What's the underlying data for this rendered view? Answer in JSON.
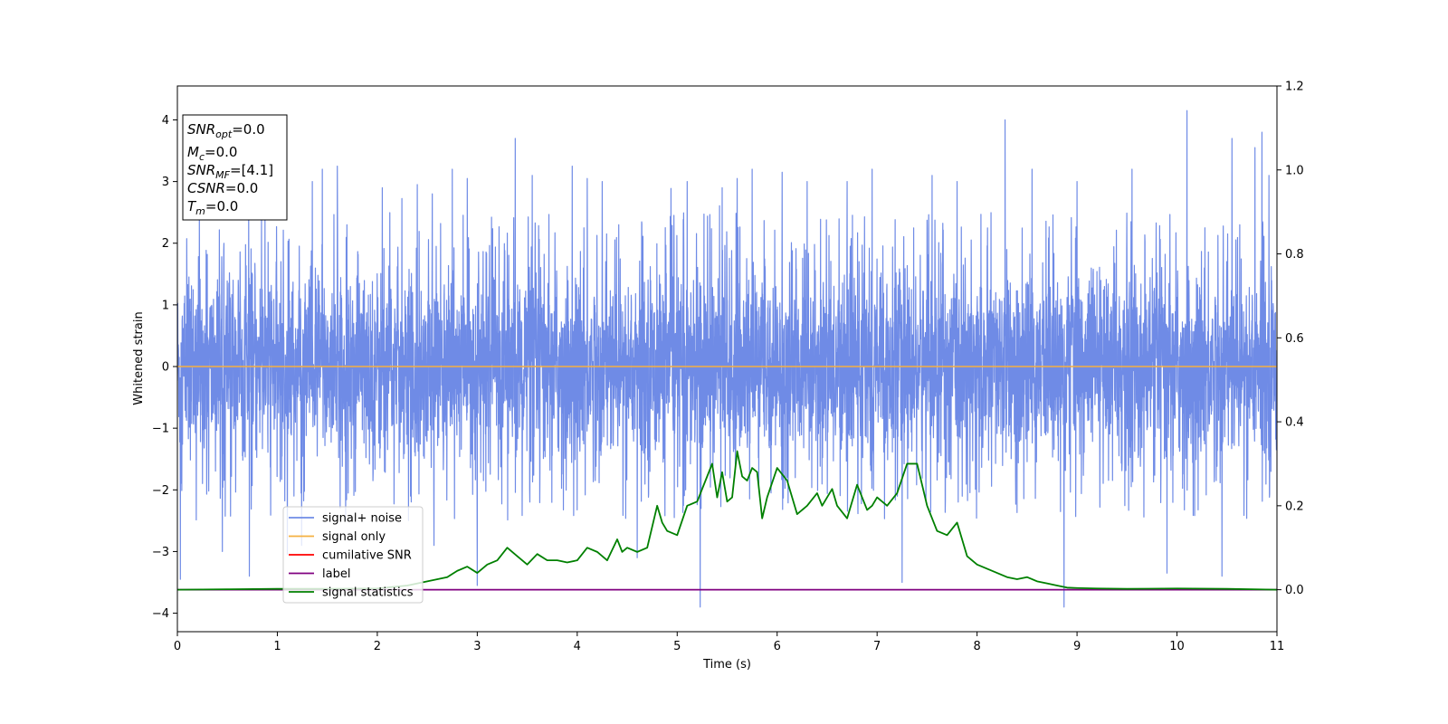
{
  "chart_data": {
    "type": "line",
    "xlabel": "Time (s)",
    "ylabel": "Whitened strain",
    "xlim": [
      0,
      11
    ],
    "ylim": [
      -4.3,
      4.55
    ],
    "y2lim": [
      -0.1,
      1.2
    ],
    "xticks": [
      "0",
      "1",
      "2",
      "3",
      "4",
      "5",
      "6",
      "7",
      "8",
      "9",
      "10",
      "11"
    ],
    "yticks": [
      "−4",
      "−3",
      "−2",
      "−1",
      "0",
      "1",
      "2",
      "3",
      "4"
    ],
    "y2ticks": [
      "0.0",
      "0.2",
      "0.4",
      "0.6",
      "0.8",
      "1.0",
      "1.2"
    ],
    "grid": false,
    "legend_position": "lower-left",
    "colors": {
      "signal_noise": "#6f8be6",
      "signal_only": "#f5b041",
      "cumulative_snr": "#ff0000",
      "label": "#800080",
      "signal_statistics": "#008000"
    },
    "annotation": {
      "lines": [
        {
          "base": "SNR",
          "sub": "opt",
          "value": "=0.0"
        },
        {
          "base": "M",
          "sub": "c",
          "value": "=0.0"
        },
        {
          "base": "SNR",
          "sub": "MF",
          "value": "=[4.1]"
        },
        {
          "base": "CSNR",
          "sub": "",
          "value": "=0.0"
        },
        {
          "base": "T",
          "sub": "m",
          "value": "=0.0"
        }
      ]
    },
    "series": [
      {
        "name": "signal+ noise",
        "axis": "left",
        "style": "noise",
        "x_range": [
          0,
          11
        ],
        "typical_amplitude": 1.35,
        "spikes": [
          {
            "x": 0.03,
            "y": -3.45
          },
          {
            "x": 0.22,
            "y": 2.5
          },
          {
            "x": 0.45,
            "y": -3.0
          },
          {
            "x": 0.72,
            "y": -3.4
          },
          {
            "x": 1.1,
            "y": -3.05
          },
          {
            "x": 1.35,
            "y": 3.0
          },
          {
            "x": 1.45,
            "y": 3.2
          },
          {
            "x": 1.6,
            "y": 3.25
          },
          {
            "x": 2.05,
            "y": 2.9
          },
          {
            "x": 2.4,
            "y": 2.95
          },
          {
            "x": 2.55,
            "y": 2.8
          },
          {
            "x": 2.75,
            "y": 3.2
          },
          {
            "x": 2.9,
            "y": 3.05
          },
          {
            "x": 3.0,
            "y": -3.55
          },
          {
            "x": 3.38,
            "y": 3.7
          },
          {
            "x": 3.55,
            "y": 3.1
          },
          {
            "x": 3.95,
            "y": 3.25
          },
          {
            "x": 4.1,
            "y": 3.05
          },
          {
            "x": 4.25,
            "y": 3.0
          },
          {
            "x": 4.6,
            "y": -3.1
          },
          {
            "x": 5.1,
            "y": 3.0
          },
          {
            "x": 5.23,
            "y": -3.9
          },
          {
            "x": 5.45,
            "y": 2.9
          },
          {
            "x": 5.6,
            "y": 3.05
          },
          {
            "x": 5.75,
            "y": 3.2
          },
          {
            "x": 6.05,
            "y": 3.15
          },
          {
            "x": 6.3,
            "y": 3.0
          },
          {
            "x": 6.7,
            "y": 3.0
          },
          {
            "x": 6.95,
            "y": 3.2
          },
          {
            "x": 7.25,
            "y": -3.5
          },
          {
            "x": 7.55,
            "y": 3.1
          },
          {
            "x": 7.8,
            "y": 3.0
          },
          {
            "x": 8.28,
            "y": 4.0
          },
          {
            "x": 8.55,
            "y": 3.2
          },
          {
            "x": 8.87,
            "y": -3.9
          },
          {
            "x": 9.0,
            "y": 3.0
          },
          {
            "x": 9.55,
            "y": 3.2
          },
          {
            "x": 9.9,
            "y": -3.35
          },
          {
            "x": 10.1,
            "y": 4.15
          },
          {
            "x": 10.45,
            "y": -3.4
          },
          {
            "x": 10.55,
            "y": 3.7
          },
          {
            "x": 10.78,
            "y": 3.55
          },
          {
            "x": 10.85,
            "y": 3.8
          },
          {
            "x": 10.92,
            "y": 3.1
          }
        ]
      },
      {
        "name": "signal only",
        "axis": "left",
        "x": [
          0,
          11
        ],
        "y": [
          0,
          0
        ]
      },
      {
        "name": "cumilative SNR",
        "axis": "right",
        "x": [],
        "y": []
      },
      {
        "name": "label",
        "axis": "right",
        "x": [
          0,
          11
        ],
        "y": [
          0,
          0
        ]
      },
      {
        "name": "signal statistics",
        "axis": "right",
        "x": [
          0,
          0.5,
          1,
          1.5,
          2,
          2.3,
          2.5,
          2.7,
          2.8,
          2.9,
          3.0,
          3.1,
          3.2,
          3.3,
          3.4,
          3.5,
          3.6,
          3.7,
          3.8,
          3.9,
          4.0,
          4.1,
          4.2,
          4.3,
          4.4,
          4.45,
          4.5,
          4.6,
          4.7,
          4.8,
          4.85,
          4.9,
          5.0,
          5.1,
          5.2,
          5.3,
          5.35,
          5.4,
          5.45,
          5.5,
          5.55,
          5.6,
          5.65,
          5.7,
          5.75,
          5.8,
          5.85,
          5.9,
          6.0,
          6.1,
          6.15,
          6.2,
          6.3,
          6.4,
          6.45,
          6.5,
          6.55,
          6.6,
          6.7,
          6.8,
          6.9,
          6.95,
          7.0,
          7.1,
          7.2,
          7.3,
          7.4,
          7.5,
          7.6,
          7.7,
          7.8,
          7.9,
          8.0,
          8.1,
          8.2,
          8.3,
          8.4,
          8.5,
          8.6,
          8.7,
          8.8,
          8.9,
          9.0,
          9.2,
          9.5,
          10.0,
          10.5,
          11
        ],
        "y": [
          0.0,
          0.001,
          0.002,
          0.002,
          0.003,
          0.01,
          0.02,
          0.03,
          0.045,
          0.055,
          0.04,
          0.06,
          0.07,
          0.1,
          0.08,
          0.06,
          0.085,
          0.07,
          0.07,
          0.065,
          0.07,
          0.1,
          0.09,
          0.07,
          0.12,
          0.09,
          0.1,
          0.09,
          0.1,
          0.2,
          0.16,
          0.14,
          0.13,
          0.2,
          0.21,
          0.27,
          0.3,
          0.22,
          0.28,
          0.21,
          0.22,
          0.33,
          0.27,
          0.26,
          0.29,
          0.28,
          0.17,
          0.22,
          0.29,
          0.26,
          0.22,
          0.18,
          0.2,
          0.23,
          0.2,
          0.22,
          0.24,
          0.2,
          0.17,
          0.25,
          0.19,
          0.2,
          0.22,
          0.2,
          0.23,
          0.3,
          0.3,
          0.2,
          0.14,
          0.13,
          0.16,
          0.08,
          0.06,
          0.05,
          0.04,
          0.03,
          0.025,
          0.03,
          0.02,
          0.015,
          0.01,
          0.005,
          0.004,
          0.003,
          0.002,
          0.003,
          0.002,
          0.0
        ]
      }
    ]
  }
}
